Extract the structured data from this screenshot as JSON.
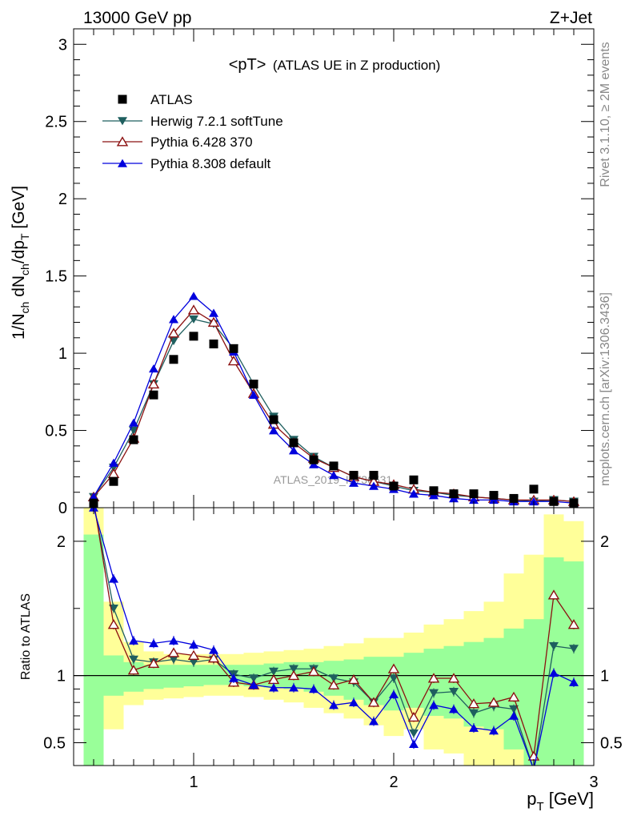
{
  "header": {
    "left": "13000 GeV pp",
    "right": "Z+Jet"
  },
  "side_labels": {
    "rivet": "Rivet 3.1.10, ≥ 2M events",
    "mcplots": "mcplots.cern.ch [arXiv:1306.3436]"
  },
  "watermark": "ATLAS_2019_I1736531",
  "colors": {
    "atlas": "#000000",
    "herwig": "#1f5f5f",
    "pythia6": "#8b1010",
    "pythia8": "#0000dd",
    "band_green": "#99ff99",
    "band_yellow": "#ffff99"
  },
  "chart_data": [
    {
      "type": "scatter",
      "title": "<pT> (ATLAS UE in Z production)",
      "title_main": "<pT>",
      "title_sub": "(ATLAS UE in Z production)",
      "ylabel_parts": [
        "1/N",
        "ch",
        " dN",
        "ch",
        "/dp",
        "T",
        " [GeV]"
      ],
      "xlim": [
        0.4,
        3.0
      ],
      "ylim": [
        0,
        3.1
      ],
      "x_ticks": [
        1,
        2,
        3
      ],
      "y_ticks": [
        0,
        0.5,
        1,
        1.5,
        2,
        2.5,
        3
      ],
      "y_tick_labels": [
        "0",
        "0.5",
        "1",
        "1.5",
        "2",
        "2.5",
        "3"
      ],
      "legend_position": "top-left",
      "x": [
        0.5,
        0.6,
        0.7,
        0.8,
        0.9,
        1.0,
        1.1,
        1.2,
        1.3,
        1.4,
        1.5,
        1.6,
        1.7,
        1.8,
        1.9,
        2.0,
        2.1,
        2.2,
        2.3,
        2.4,
        2.5,
        2.6,
        2.7,
        2.8,
        2.9
      ],
      "series": [
        {
          "name": "ATLAS",
          "marker": "square",
          "line": false,
          "values": [
            0.03,
            0.17,
            0.44,
            0.73,
            0.96,
            1.11,
            1.06,
            1.03,
            0.8,
            0.57,
            0.42,
            0.31,
            0.27,
            0.21,
            0.21,
            0.14,
            0.18,
            0.11,
            0.09,
            0.09,
            0.08,
            0.06,
            0.12,
            0.04,
            0.03
          ]
        },
        {
          "name": "Herwig 7.2.1 softTune",
          "marker": "triangle-down",
          "line": true,
          "values": [
            0.07,
            0.26,
            0.5,
            0.8,
            1.08,
            1.22,
            1.19,
            1.03,
            0.8,
            0.59,
            0.44,
            0.33,
            0.26,
            0.2,
            0.17,
            0.14,
            0.11,
            0.1,
            0.08,
            0.07,
            0.06,
            0.05,
            0.04,
            0.05,
            0.04
          ]
        },
        {
          "name": "Pythia 6.428 370",
          "marker": "triangle-open",
          "line": true,
          "values": [
            0.07,
            0.22,
            0.45,
            0.8,
            1.13,
            1.28,
            1.2,
            0.95,
            0.74,
            0.54,
            0.42,
            0.32,
            0.26,
            0.2,
            0.17,
            0.15,
            0.12,
            0.1,
            0.09,
            0.07,
            0.06,
            0.05,
            0.05,
            0.05,
            0.04
          ]
        },
        {
          "name": "Pythia 8.308 default",
          "marker": "triangle",
          "line": true,
          "values": [
            0.07,
            0.29,
            0.55,
            0.9,
            1.22,
            1.37,
            1.26,
            1.01,
            0.73,
            0.5,
            0.37,
            0.28,
            0.21,
            0.16,
            0.14,
            0.12,
            0.09,
            0.08,
            0.06,
            0.05,
            0.05,
            0.04,
            0.04,
            0.04,
            0.03
          ]
        }
      ]
    },
    {
      "type": "scatter",
      "ylabel": "Ratio to ATLAS",
      "xlabel_main": "p",
      "xlabel_sub": "T",
      "xlabel_unit": " [GeV]",
      "xlim": [
        0.4,
        3.0
      ],
      "ylim": [
        0.33,
        2.25
      ],
      "x_ticks": [
        1,
        2,
        3
      ],
      "x_tick_labels": [
        "1",
        "2",
        "3"
      ],
      "y_ticks": [
        0.5,
        1,
        2
      ],
      "y_tick_labels": [
        "0.5",
        "1",
        "2"
      ],
      "reference_line": 1,
      "bands": {
        "x_edges": [
          0.45,
          0.55,
          0.65,
          0.75,
          0.85,
          0.95,
          1.05,
          1.15,
          1.25,
          1.35,
          1.45,
          1.55,
          1.65,
          1.75,
          1.85,
          1.95,
          2.05,
          2.15,
          2.25,
          2.35,
          2.45,
          2.55,
          2.65,
          2.75,
          2.85,
          2.95
        ],
        "yellow_lo": [
          0.33,
          0.6,
          0.78,
          0.82,
          0.83,
          0.84,
          0.85,
          0.85,
          0.84,
          0.82,
          0.8,
          0.76,
          0.72,
          0.68,
          0.63,
          0.55,
          0.6,
          0.45,
          0.42,
          0.33,
          0.33,
          0.33,
          0.33,
          0.33,
          0.33
        ],
        "yellow_hi": [
          2.25,
          1.55,
          1.25,
          1.18,
          1.16,
          1.16,
          1.16,
          1.16,
          1.17,
          1.18,
          1.19,
          1.2,
          1.22,
          1.24,
          1.28,
          1.28,
          1.32,
          1.38,
          1.42,
          1.48,
          1.55,
          1.76,
          1.9,
          2.2,
          2.15
        ],
        "green_lo": [
          0.33,
          0.85,
          0.88,
          0.9,
          0.91,
          0.92,
          0.93,
          0.93,
          0.92,
          0.91,
          0.9,
          0.88,
          0.85,
          0.82,
          0.78,
          0.74,
          0.76,
          0.7,
          0.68,
          0.62,
          0.6,
          0.45,
          0.33,
          0.33,
          0.33
        ],
        "green_hi": [
          2.05,
          1.15,
          1.1,
          1.08,
          1.08,
          1.08,
          1.08,
          1.08,
          1.08,
          1.09,
          1.1,
          1.1,
          1.11,
          1.12,
          1.14,
          1.14,
          1.17,
          1.2,
          1.22,
          1.25,
          1.28,
          1.35,
          1.42,
          1.88,
          1.85
        ]
      },
      "x": [
        0.5,
        0.6,
        0.7,
        0.8,
        0.9,
        1.0,
        1.1,
        1.2,
        1.3,
        1.4,
        1.5,
        1.6,
        1.7,
        1.8,
        1.9,
        2.0,
        2.1,
        2.2,
        2.3,
        2.4,
        2.5,
        2.6,
        2.7,
        2.8,
        2.9
      ],
      "series": [
        {
          "name": "Herwig 7.2.1 softTune",
          "marker": "triangle-down",
          "values": [
            2.28,
            1.5,
            1.12,
            1.1,
            1.12,
            1.1,
            1.12,
            1.01,
            0.98,
            1.03,
            1.05,
            1.05,
            0.98,
            0.95,
            0.8,
            0.98,
            0.57,
            0.87,
            0.88,
            0.72,
            0.77,
            0.75,
            0.3,
            1.22,
            1.2
          ]
        },
        {
          "name": "Pythia 6.428 370",
          "marker": "triangle-open",
          "values": [
            2.3,
            1.38,
            1.04,
            1.09,
            1.17,
            1.15,
            1.13,
            0.95,
            0.93,
            0.97,
            1.0,
            1.03,
            0.93,
            0.97,
            0.8,
            1.05,
            0.69,
            0.98,
            0.98,
            0.79,
            0.8,
            0.84,
            0.4,
            1.6,
            1.38
          ]
        },
        {
          "name": "Pythia 8.308 default",
          "marker": "triangle",
          "values": [
            2.25,
            1.72,
            1.26,
            1.24,
            1.26,
            1.23,
            1.19,
            0.98,
            0.93,
            0.91,
            0.91,
            0.9,
            0.78,
            0.8,
            0.66,
            0.86,
            0.49,
            0.78,
            0.75,
            0.61,
            0.59,
            0.7,
            0.3,
            1.02,
            0.95
          ]
        }
      ]
    }
  ]
}
